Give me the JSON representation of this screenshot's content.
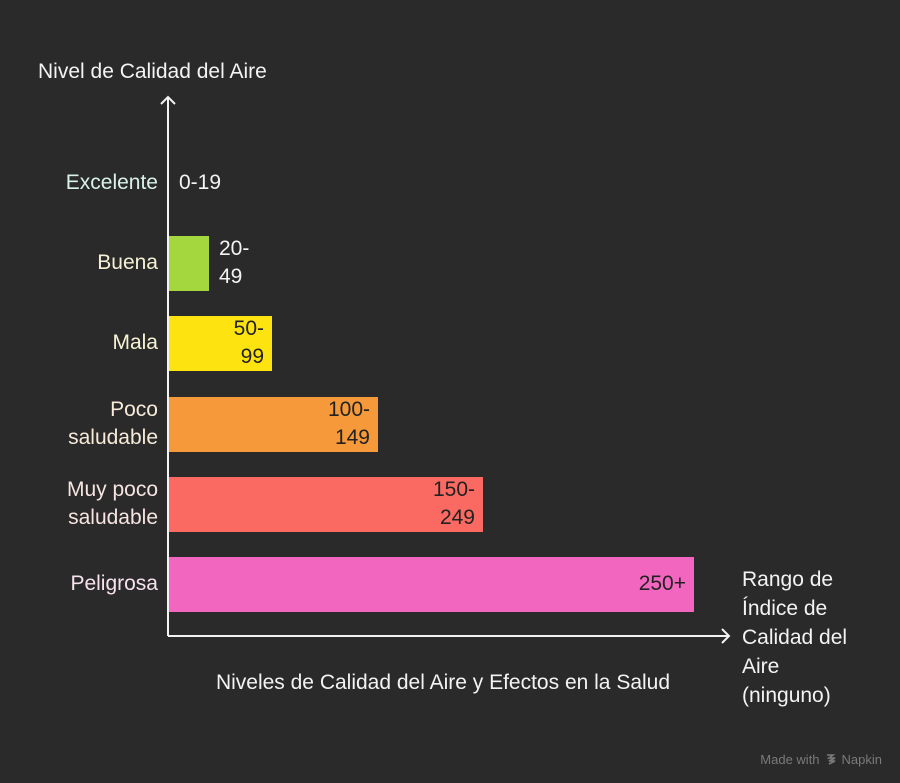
{
  "chart_data": {
    "type": "bar",
    "orientation": "horizontal",
    "ylabel": "Nivel de Calidad del Aire",
    "xlabel": "Rango de Índice de Calidad del Aire (ninguno)",
    "caption": "Niveles de Calidad del Aire y Efectos en la Salud",
    "categories": [
      "Excelente",
      "Buena",
      "Mala",
      "Poco saludable",
      "Muy poco saludable",
      "Peligrosa"
    ],
    "category_lines": [
      [
        "Excelente"
      ],
      [
        "Buena"
      ],
      [
        "Mala"
      ],
      [
        "Poco",
        "saludable"
      ],
      [
        "Muy poco",
        "saludable"
      ],
      [
        "Peligrosa"
      ]
    ],
    "ranges": [
      "0-19",
      "20-49",
      "50-99",
      "100-149",
      "150-249",
      "250+"
    ],
    "range_lines": [
      [
        "0-19"
      ],
      [
        "20-",
        "49"
      ],
      [
        "50-",
        "99"
      ],
      [
        "100-",
        "149"
      ],
      [
        "150-",
        "249"
      ],
      [
        "250+"
      ]
    ],
    "levels": [
      0,
      1,
      2,
      3,
      4,
      5
    ],
    "colors": [
      "#2a2a2a",
      "#a4d63e",
      "#fde410",
      "#f5993a",
      "#fa6a62",
      "#f266c0"
    ],
    "label_colors": [
      "#d9f2ea",
      "#f5f0d4",
      "#f7f3d2",
      "#f7ead9",
      "#f7e4e0",
      "#f7e2ee"
    ],
    "grid": false,
    "legend": "none"
  },
  "xlabel_lines": [
    "Rango de",
    "Índice de",
    "Calidad del",
    "Aire",
    "(ninguno)"
  ],
  "branding": {
    "made_with": "Made with",
    "name": "Napkin"
  }
}
